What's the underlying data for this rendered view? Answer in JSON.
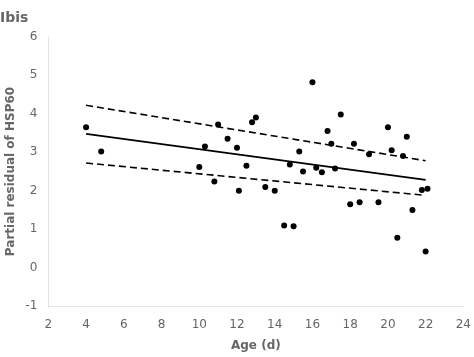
{
  "chart_data": {
    "type": "scatter",
    "title": "Ibis",
    "xlabel": "Age (d)",
    "ylabel": "Partial residual of HSP60",
    "xlim": [
      2,
      24
    ],
    "ylim": [
      -1,
      6
    ],
    "xticks": [
      2,
      4,
      6,
      8,
      10,
      12,
      14,
      16,
      18,
      20,
      22,
      24
    ],
    "yticks": [
      -1,
      0,
      1,
      2,
      3,
      4,
      5,
      6
    ],
    "grid": false,
    "series": [
      {
        "type": "scatter",
        "color": "#000000",
        "marker": "circle",
        "x": [
          4.0,
          4.8,
          10.0,
          10.3,
          10.8,
          11.0,
          11.5,
          12.0,
          12.1,
          12.5,
          12.8,
          13.0,
          13.5,
          14.0,
          14.5,
          14.8,
          15.0,
          15.3,
          15.5,
          16.0,
          16.2,
          16.5,
          16.8,
          17.0,
          17.2,
          17.5,
          18.0,
          18.2,
          18.5,
          19.0,
          19.5,
          20.0,
          20.2,
          20.5,
          20.8,
          21.0,
          21.3,
          21.8,
          22.0,
          22.1
        ],
        "values": [
          3.65,
          3.02,
          2.62,
          3.15,
          2.24,
          3.72,
          3.35,
          3.12,
          2.0,
          2.65,
          3.78,
          3.9,
          2.1,
          2.0,
          1.1,
          2.68,
          1.08,
          3.02,
          2.5,
          4.82,
          2.6,
          2.48,
          3.55,
          3.22,
          2.58,
          3.98,
          1.65,
          3.22,
          1.7,
          2.95,
          1.7,
          3.65,
          3.05,
          0.78,
          2.9,
          3.4,
          1.5,
          2.02,
          0.42,
          2.05
        ]
      },
      {
        "type": "line",
        "color": "#000000",
        "line_style": "solid",
        "x": [
          4,
          22
        ],
        "values": [
          3.48,
          2.28
        ]
      },
      {
        "type": "line",
        "color": "#000000",
        "line_style": "dashed",
        "x": [
          4,
          22
        ],
        "values": [
          4.22,
          2.78
        ]
      },
      {
        "type": "line",
        "color": "#000000",
        "line_style": "dashed",
        "x": [
          4,
          22
        ],
        "values": [
          2.72,
          1.88
        ]
      }
    ]
  }
}
